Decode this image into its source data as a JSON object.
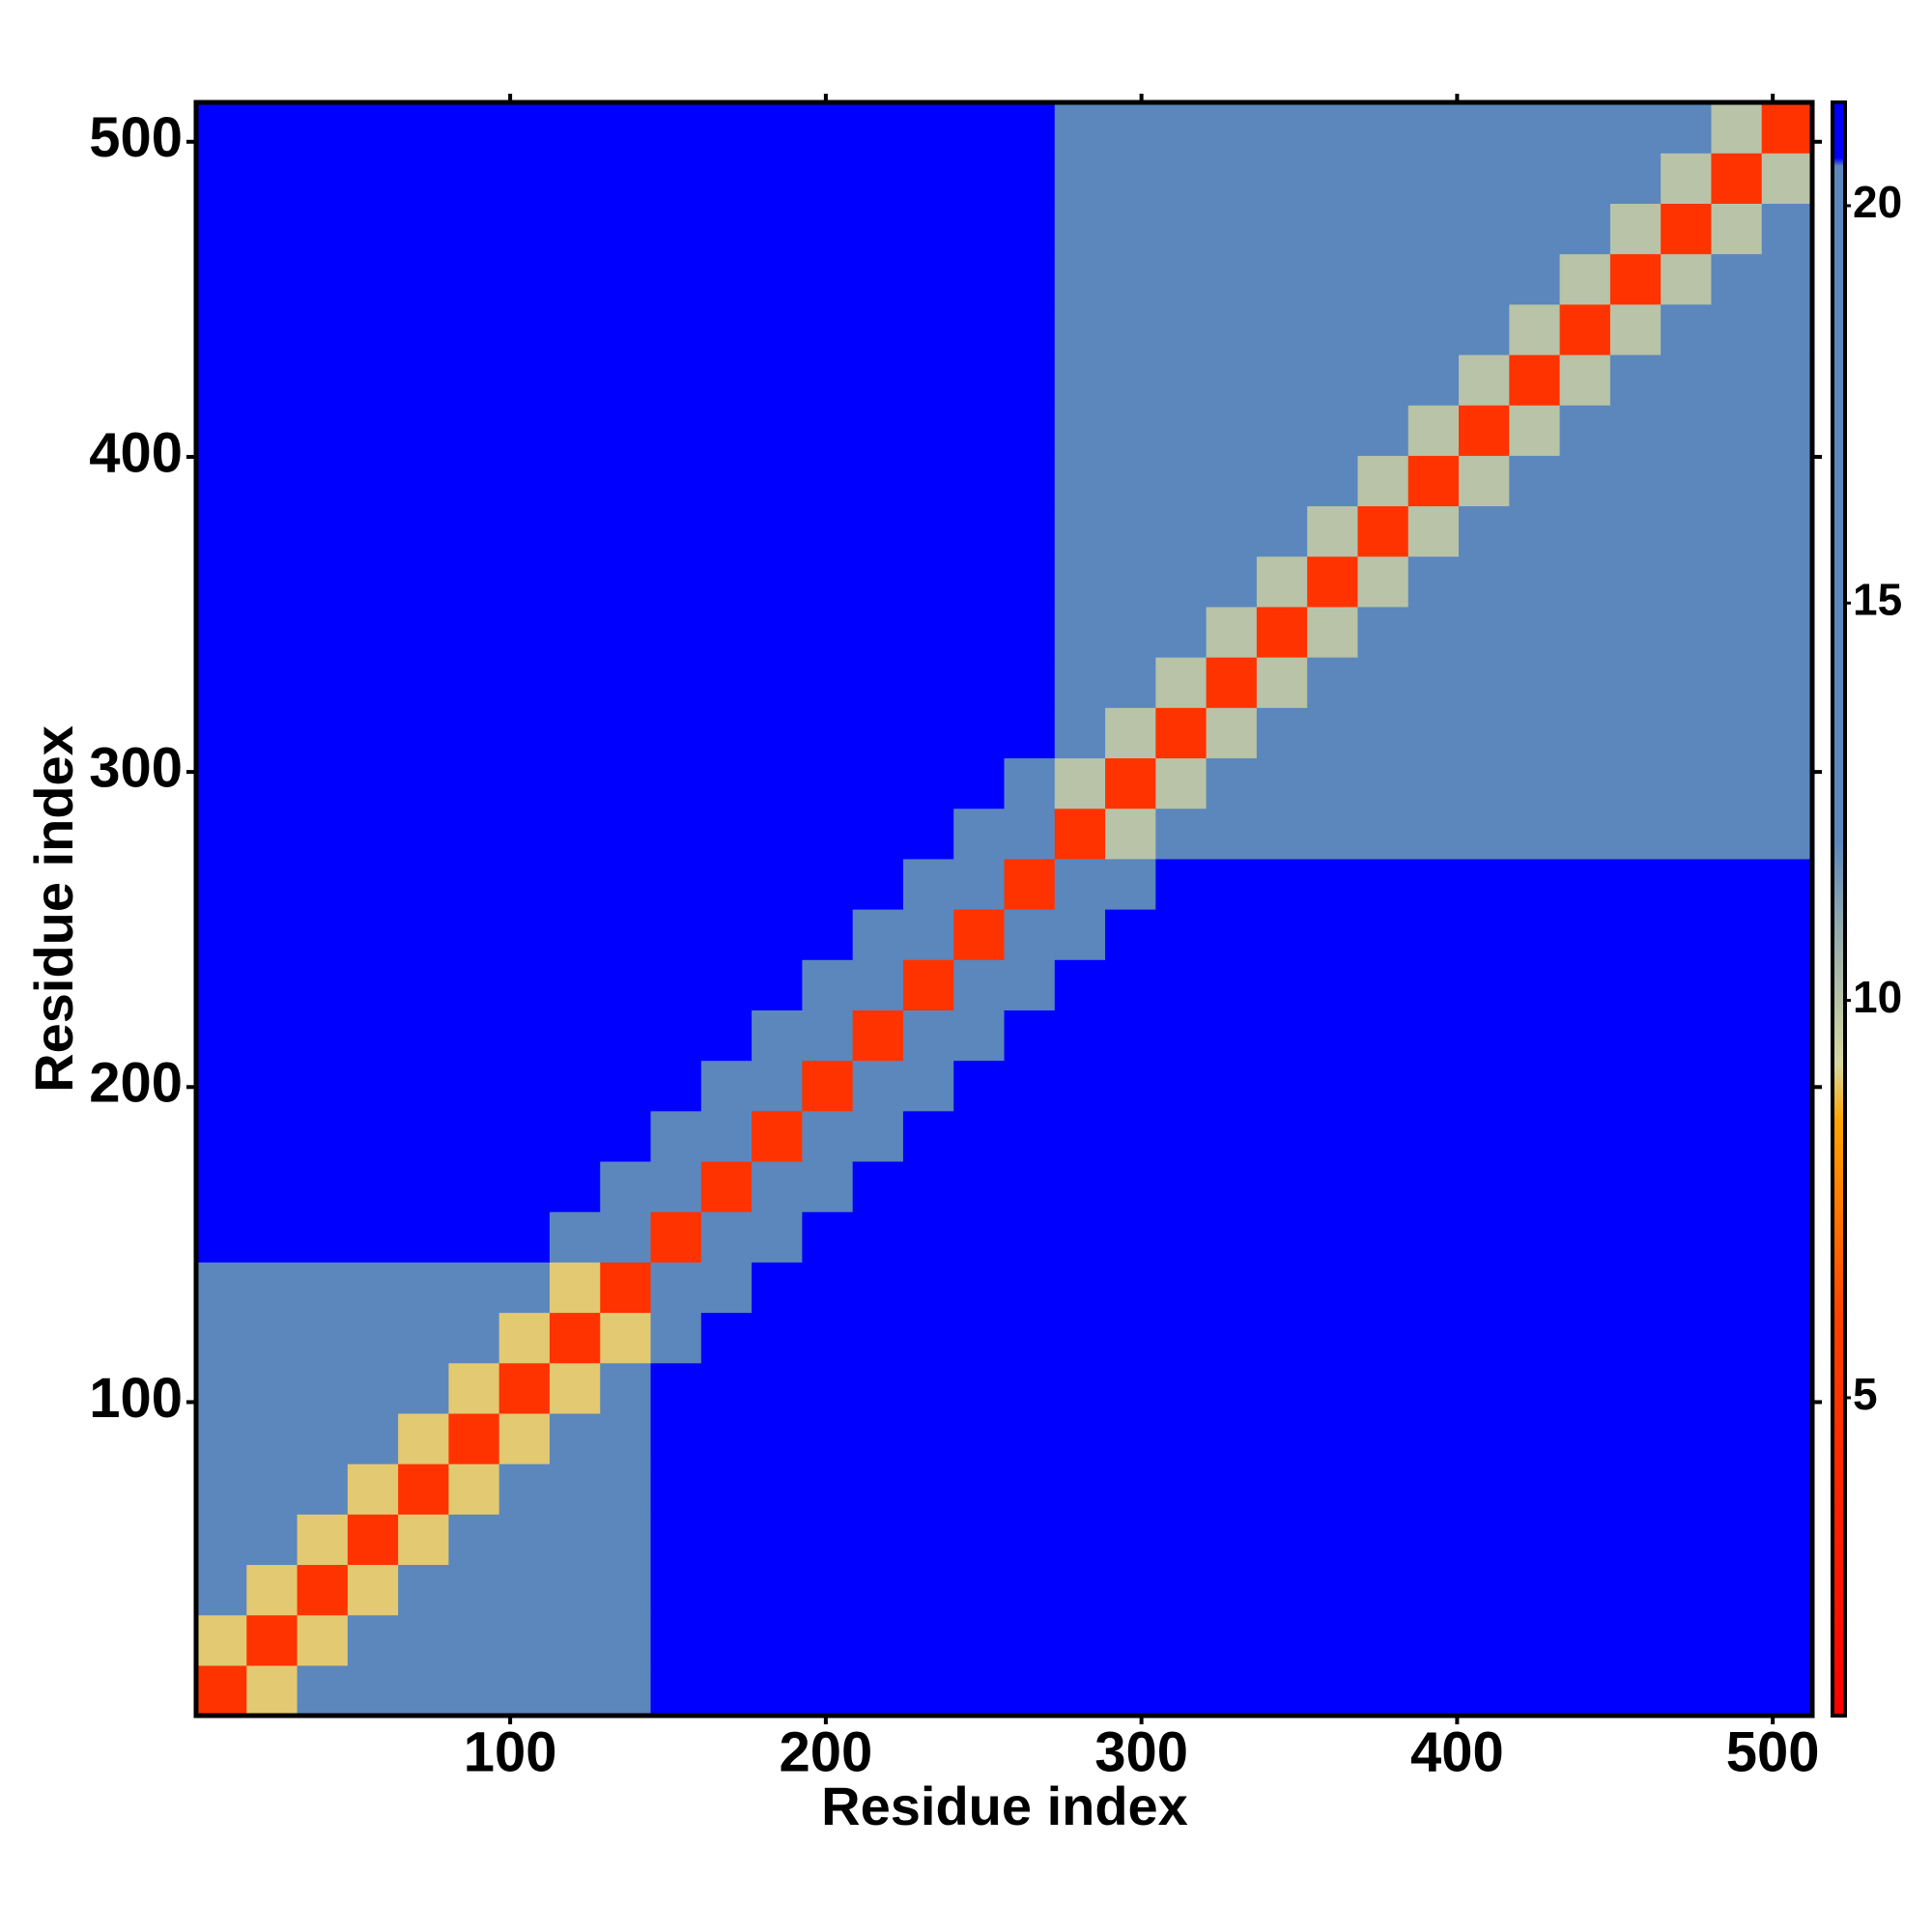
{
  "chart_data": {
    "type": "heatmap",
    "xlabel": "Residue index",
    "ylabel": "Residue index",
    "xlim": [
      0.5,
      512.5
    ],
    "ylim": [
      0.5,
      512.5
    ],
    "xticks": [
      100,
      200,
      300,
      400,
      500
    ],
    "yticks": [
      100,
      200,
      300,
      400,
      500
    ],
    "xbins": [
      0.5,
      16.5,
      32.5,
      48.5,
      64.5,
      80.5,
      96.5,
      112.5,
      128.5,
      144.5,
      160.5,
      176.5,
      192.5,
      208.5,
      224.5,
      240.5,
      256.5,
      272.5,
      288.5,
      304.5,
      320.5,
      336.5,
      352.5,
      368.5,
      384.5,
      400.5,
      416.5,
      432.5,
      448.5,
      464.5,
      480.5,
      496.5,
      512.5
    ],
    "ybins": [
      0.5,
      16.5,
      32.5,
      48.5,
      64.5,
      80.5,
      96.5,
      112.5,
      128.5,
      144.5,
      160.5,
      176.5,
      192.5,
      208.5,
      224.5,
      240.5,
      256.5,
      272.5,
      288.5,
      304.5,
      320.5,
      336.5,
      352.5,
      368.5,
      384.5,
      400.5,
      416.5,
      432.5,
      448.5,
      464.5,
      480.5,
      496.5,
      512.5
    ],
    "zlim": [
      1,
      21.3
    ],
    "zticks": [
      5,
      10,
      15,
      20
    ],
    "colorscale": [
      [
        1,
        "#ff0000"
      ],
      [
        6,
        "#ff4000"
      ],
      [
        8.5,
        "#ffa500"
      ],
      [
        9.2,
        "#d8d8a0"
      ],
      [
        11,
        "#8fa8b0"
      ],
      [
        12,
        "#5b87bd"
      ],
      [
        20.5,
        "#5b87bd"
      ],
      [
        20.6,
        "#0000ff"
      ],
      [
        21.3,
        "#0000ff"
      ]
    ],
    "z": [
      [
        5,
        9,
        14,
        14,
        14,
        14,
        14,
        14,
        14,
        30,
        30,
        30,
        30,
        30,
        30,
        30,
        30,
        40,
        40,
        40,
        40,
        40,
        40,
        40,
        40,
        40,
        40,
        40,
        40,
        40,
        40,
        40
      ],
      [
        9,
        5,
        9,
        14,
        14,
        14,
        14,
        14,
        14,
        30,
        30,
        30,
        30,
        30,
        30,
        30,
        30,
        40,
        40,
        40,
        40,
        40,
        40,
        40,
        40,
        40,
        40,
        40,
        40,
        40,
        40,
        40
      ],
      [
        14,
        9,
        5,
        9,
        14,
        14,
        14,
        14,
        14,
        30,
        30,
        30,
        30,
        30,
        30,
        30,
        30,
        40,
        40,
        40,
        40,
        40,
        40,
        40,
        40,
        40,
        40,
        40,
        40,
        40,
        40,
        40
      ],
      [
        14,
        14,
        9,
        5,
        9,
        14,
        14,
        14,
        14,
        30,
        30,
        30,
        30,
        30,
        30,
        30,
        30,
        40,
        40,
        40,
        40,
        40,
        40,
        40,
        40,
        40,
        40,
        40,
        40,
        40,
        40,
        40
      ],
      [
        14,
        14,
        14,
        9,
        5,
        9,
        14,
        14,
        14,
        30,
        30,
        30,
        30,
        30,
        30,
        30,
        30,
        40,
        40,
        40,
        40,
        40,
        40,
        40,
        40,
        40,
        40,
        40,
        40,
        40,
        40,
        40
      ],
      [
        14,
        14,
        14,
        14,
        9,
        5,
        9,
        14,
        14,
        30,
        30,
        30,
        30,
        30,
        30,
        30,
        30,
        40,
        40,
        40,
        40,
        40,
        40,
        40,
        40,
        40,
        40,
        40,
        40,
        40,
        40,
        40
      ],
      [
        14,
        14,
        14,
        14,
        14,
        9,
        5,
        9,
        14,
        30,
        30,
        30,
        30,
        30,
        30,
        30,
        30,
        40,
        40,
        40,
        40,
        40,
        40,
        40,
        40,
        40,
        40,
        40,
        40,
        40,
        40,
        40
      ],
      [
        14,
        14,
        14,
        14,
        14,
        14,
        9,
        5,
        9,
        19,
        30,
        30,
        30,
        30,
        30,
        30,
        30,
        40,
        40,
        40,
        40,
        40,
        40,
        40,
        40,
        40,
        40,
        40,
        40,
        40,
        40,
        40
      ],
      [
        14,
        14,
        14,
        14,
        14,
        14,
        14,
        9,
        5,
        12,
        19,
        30,
        30,
        30,
        30,
        30,
        30,
        40,
        40,
        40,
        40,
        40,
        40,
        40,
        40,
        40,
        40,
        40,
        40,
        40,
        40,
        40
      ],
      [
        30,
        30,
        30,
        30,
        30,
        30,
        30,
        19,
        12,
        5,
        12,
        19,
        30,
        30,
        30,
        30,
        30,
        30,
        30,
        30,
        30,
        30,
        30,
        30,
        30,
        30,
        30,
        30,
        30,
        30,
        30,
        30
      ],
      [
        30,
        30,
        30,
        30,
        30,
        30,
        30,
        30,
        19,
        12,
        5,
        12,
        19,
        30,
        30,
        30,
        30,
        30,
        30,
        30,
        30,
        30,
        30,
        30,
        30,
        30,
        30,
        30,
        30,
        30,
        30,
        30
      ],
      [
        30,
        30,
        30,
        30,
        30,
        30,
        30,
        30,
        30,
        19,
        12,
        5,
        12,
        19,
        30,
        30,
        30,
        30,
        30,
        30,
        30,
        30,
        30,
        30,
        30,
        30,
        30,
        30,
        30,
        30,
        30,
        30
      ],
      [
        30,
        30,
        30,
        30,
        30,
        30,
        30,
        30,
        30,
        30,
        19,
        12,
        5,
        12,
        19,
        30,
        30,
        30,
        30,
        30,
        30,
        30,
        30,
        30,
        30,
        30,
        30,
        30,
        30,
        30,
        30,
        30
      ],
      [
        30,
        30,
        30,
        30,
        30,
        30,
        30,
        30,
        30,
        30,
        30,
        19,
        12,
        5,
        12,
        19,
        30,
        30,
        30,
        30,
        30,
        30,
        30,
        30,
        30,
        30,
        30,
        30,
        30,
        30,
        30,
        30
      ],
      [
        30,
        30,
        30,
        30,
        30,
        30,
        30,
        30,
        30,
        30,
        30,
        30,
        19,
        12,
        5,
        12,
        19,
        30,
        30,
        30,
        30,
        30,
        30,
        30,
        30,
        30,
        30,
        30,
        30,
        30,
        30,
        30
      ],
      [
        30,
        30,
        30,
        30,
        30,
        30,
        30,
        30,
        30,
        30,
        30,
        30,
        30,
        19,
        12,
        5,
        12,
        19,
        30,
        30,
        30,
        30,
        30,
        30,
        30,
        30,
        30,
        30,
        30,
        30,
        30,
        30
      ],
      [
        30,
        30,
        30,
        30,
        30,
        30,
        30,
        30,
        30,
        30,
        30,
        30,
        30,
        30,
        19,
        12,
        5,
        12,
        19,
        30,
        30,
        30,
        30,
        30,
        30,
        30,
        30,
        30,
        30,
        30,
        30,
        30
      ],
      [
        40,
        40,
        40,
        40,
        40,
        40,
        40,
        40,
        40,
        30,
        30,
        30,
        30,
        30,
        30,
        19,
        12,
        5,
        10,
        17,
        17,
        17,
        17,
        17,
        17,
        17,
        17,
        17,
        17,
        17,
        17,
        17
      ],
      [
        40,
        40,
        40,
        40,
        40,
        40,
        40,
        40,
        40,
        30,
        30,
        30,
        30,
        30,
        30,
        30,
        19,
        10,
        5,
        10,
        17,
        17,
        17,
        17,
        17,
        17,
        17,
        17,
        17,
        17,
        17,
        17
      ],
      [
        40,
        40,
        40,
        40,
        40,
        40,
        40,
        40,
        40,
        30,
        30,
        30,
        30,
        30,
        30,
        30,
        30,
        17,
        10,
        5,
        10,
        17,
        17,
        17,
        17,
        17,
        17,
        17,
        17,
        17,
        17,
        17
      ],
      [
        40,
        40,
        40,
        40,
        40,
        40,
        40,
        40,
        40,
        30,
        30,
        30,
        30,
        30,
        30,
        30,
        30,
        17,
        17,
        10,
        5,
        10,
        17,
        17,
        17,
        17,
        17,
        17,
        17,
        17,
        17,
        17
      ],
      [
        40,
        40,
        40,
        40,
        40,
        40,
        40,
        40,
        40,
        30,
        30,
        30,
        30,
        30,
        30,
        30,
        30,
        17,
        17,
        17,
        10,
        5,
        10,
        17,
        17,
        17,
        17,
        17,
        17,
        17,
        17,
        17
      ],
      [
        40,
        40,
        40,
        40,
        40,
        40,
        40,
        40,
        40,
        30,
        30,
        30,
        30,
        30,
        30,
        30,
        30,
        17,
        17,
        17,
        17,
        10,
        5,
        10,
        17,
        17,
        17,
        17,
        17,
        17,
        17,
        17
      ],
      [
        40,
        40,
        40,
        40,
        40,
        40,
        40,
        40,
        40,
        30,
        30,
        30,
        30,
        30,
        30,
        30,
        30,
        17,
        17,
        17,
        17,
        17,
        10,
        5,
        10,
        17,
        17,
        17,
        17,
        17,
        17,
        17
      ],
      [
        40,
        40,
        40,
        40,
        40,
        40,
        40,
        40,
        40,
        30,
        30,
        30,
        30,
        30,
        30,
        30,
        30,
        17,
        17,
        17,
        17,
        17,
        17,
        10,
        5,
        10,
        17,
        17,
        17,
        17,
        17,
        17
      ],
      [
        40,
        40,
        40,
        40,
        40,
        40,
        40,
        40,
        40,
        30,
        30,
        30,
        30,
        30,
        30,
        30,
        30,
        17,
        17,
        17,
        17,
        17,
        17,
        17,
        10,
        5,
        10,
        17,
        17,
        17,
        17,
        17
      ],
      [
        40,
        40,
        40,
        40,
        40,
        40,
        40,
        40,
        40,
        30,
        30,
        30,
        30,
        30,
        30,
        30,
        30,
        17,
        17,
        17,
        17,
        17,
        17,
        17,
        17,
        10,
        5,
        10,
        17,
        17,
        17,
        17
      ],
      [
        40,
        40,
        40,
        40,
        40,
        40,
        40,
        40,
        40,
        30,
        30,
        30,
        30,
        30,
        30,
        30,
        30,
        17,
        17,
        17,
        17,
        17,
        17,
        17,
        17,
        17,
        10,
        5,
        10,
        17,
        17,
        17
      ],
      [
        40,
        40,
        40,
        40,
        40,
        40,
        40,
        40,
        40,
        30,
        30,
        30,
        30,
        30,
        30,
        30,
        30,
        17,
        17,
        17,
        17,
        17,
        17,
        17,
        17,
        17,
        17,
        10,
        5,
        10,
        17,
        17
      ],
      [
        40,
        40,
        40,
        40,
        40,
        40,
        40,
        40,
        40,
        30,
        30,
        30,
        30,
        30,
        30,
        30,
        30,
        17,
        17,
        17,
        17,
        17,
        17,
        17,
        17,
        17,
        17,
        17,
        10,
        5,
        10,
        17
      ],
      [
        40,
        40,
        40,
        40,
        40,
        40,
        40,
        40,
        40,
        30,
        30,
        30,
        30,
        30,
        30,
        30,
        30,
        17,
        17,
        17,
        17,
        17,
        17,
        17,
        17,
        17,
        17,
        17,
        17,
        10,
        5,
        10
      ],
      [
        40,
        40,
        40,
        40,
        40,
        40,
        40,
        40,
        40,
        30,
        30,
        30,
        30,
        30,
        30,
        30,
        30,
        17,
        17,
        17,
        17,
        17,
        17,
        17,
        17,
        17,
        17,
        17,
        17,
        17,
        10,
        5
      ]
    ]
  }
}
